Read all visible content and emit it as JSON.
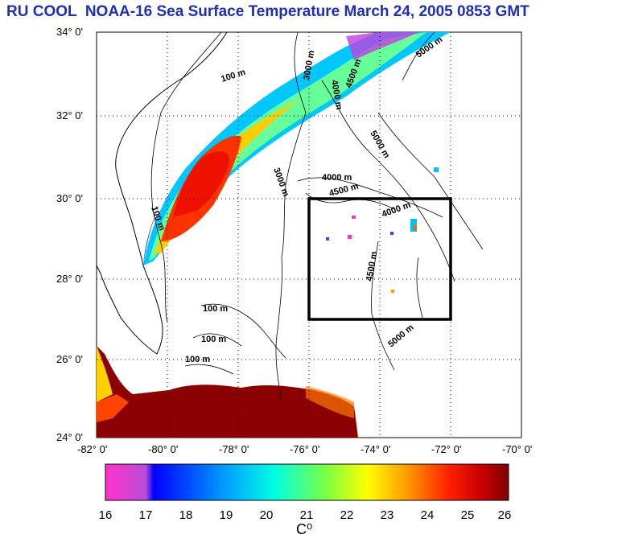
{
  "title": "RU COOL  NOAA-16 Sea Surface Temperature March 24, 2005 0853 GMT",
  "map": {
    "lat_labels": [
      "34° 0'",
      "32° 0'",
      "30° 0'",
      "28° 0'",
      "26° 0'",
      "24° 0'"
    ],
    "lon_labels": [
      "-82° 0'",
      "-80° 0'",
      "-78° 0'",
      "-76° 0'",
      "-74° 0'",
      "-72° 0'",
      "-70° 0'"
    ],
    "lat_values": [
      34,
      32,
      30,
      28,
      26,
      24
    ],
    "lon_values": [
      -82,
      -80,
      -78,
      -76,
      -74,
      -72,
      -70
    ],
    "study_box": {
      "lon_min": -76,
      "lon_max": -72,
      "lat_min": 27,
      "lat_max": 30
    },
    "contour_labels": {
      "c100a": "100 m",
      "c100b": "100 m",
      "c100c": "100 m",
      "c100d": "100 m",
      "c100e": "100 m",
      "c3000a": "3000 m",
      "c3000b": "3000 m",
      "c4000a": "4000 m",
      "c4000b": "4000 m",
      "c4000c": "4000 m",
      "c4500a": "4500 m",
      "c4500b": "4500 m",
      "c4500c": "4500 m",
      "c5000a": "5000 m",
      "c5000b": "5000 m",
      "c5000c": "5000 m"
    }
  },
  "colorbar": {
    "ticks": [
      "16",
      "17",
      "18",
      "19",
      "20",
      "21",
      "22",
      "23",
      "24",
      "25",
      "26"
    ],
    "unit": "C⁰",
    "colors": [
      "#ff33cc",
      "#b94dd6",
      "#0000ff",
      "#00a0ff",
      "#00ffe0",
      "#7fff40",
      "#ffff00",
      "#ff9900",
      "#ff2200",
      "#cc0000",
      "#800000"
    ]
  }
}
